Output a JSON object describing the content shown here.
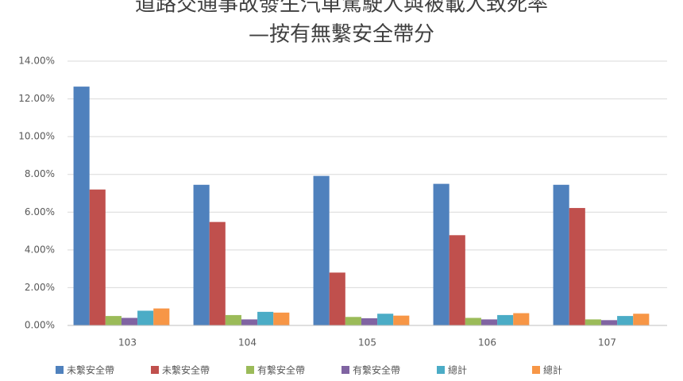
{
  "chart_data": {
    "type": "bar",
    "title": "道路交通事故發生汽車駕駛人與被載人致死率",
    "subtitle": "—按有無繫安全帶分",
    "categories": [
      "103",
      "104",
      "105",
      "106",
      "107"
    ],
    "series": [
      {
        "name": "未繫安全帶",
        "color": "#4f81bd",
        "values": [
          12.65,
          7.45,
          7.92,
          7.5,
          7.45
        ]
      },
      {
        "name": "未繫安全帶",
        "color": "#c0504d",
        "values": [
          7.2,
          5.48,
          2.8,
          4.78,
          6.22
        ]
      },
      {
        "name": "有繫安全帶",
        "color": "#9bbb59",
        "values": [
          0.5,
          0.55,
          0.45,
          0.4,
          0.32
        ]
      },
      {
        "name": "有繫安全帶",
        "color": "#8064a2",
        "values": [
          0.4,
          0.32,
          0.38,
          0.32,
          0.28
        ]
      },
      {
        "name": "總計",
        "color": "#4bacc6",
        "values": [
          0.78,
          0.72,
          0.62,
          0.55,
          0.5
        ]
      },
      {
        "name": "總計",
        "color": "#f79646",
        "values": [
          0.9,
          0.68,
          0.52,
          0.65,
          0.62
        ]
      }
    ],
    "ylim": [
      0,
      14
    ],
    "yticks": [
      {
        "value": 0,
        "label": "0.00%"
      },
      {
        "value": 2,
        "label": "2.00%"
      },
      {
        "value": 4,
        "label": "4.00%"
      },
      {
        "value": 6,
        "label": "6.00%"
      },
      {
        "value": 8,
        "label": "8.00%"
      },
      {
        "value": 10,
        "label": "10.00%"
      },
      {
        "value": 12,
        "label": "12.00%"
      },
      {
        "value": 14,
        "label": "14.00%"
      }
    ],
    "grid": true
  }
}
